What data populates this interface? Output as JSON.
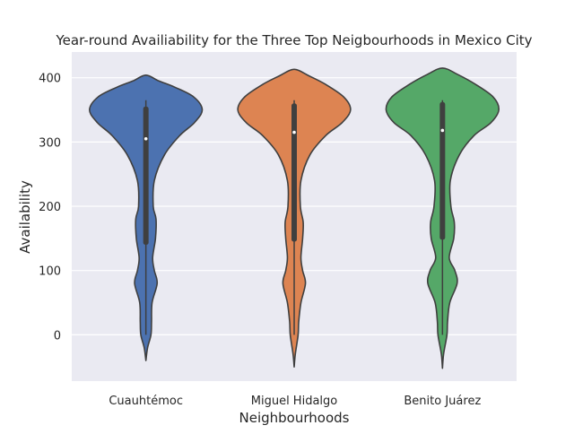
{
  "chart_data": {
    "type": "violin",
    "title": "Year-round Availiability for the Three Top Neigbourhoods in Mexico City",
    "xlabel": "Neighbourhoods",
    "ylabel": "Availability",
    "ylim": [
      -72,
      440
    ],
    "yticks": [
      0,
      100,
      200,
      300,
      400
    ],
    "grid": true,
    "categories": [
      "Cuauhtémoc",
      "Miguel Hidalgo",
      "Benito Juárez"
    ],
    "colors": [
      "#4c72b0",
      "#dd8452",
      "#55a868"
    ],
    "series": [
      {
        "category": "Cuauhtémoc",
        "median": 305,
        "q1": 140,
        "q3": 355,
        "whisker_low": 0,
        "whisker_high": 365,
        "density": [
          [
            -40,
            0.0
          ],
          [
            -20,
            0.03
          ],
          [
            0,
            0.09
          ],
          [
            20,
            0.1
          ],
          [
            50,
            0.11
          ],
          [
            80,
            0.2
          ],
          [
            100,
            0.15
          ],
          [
            120,
            0.12
          ],
          [
            150,
            0.17
          ],
          [
            180,
            0.18
          ],
          [
            200,
            0.13
          ],
          [
            240,
            0.15
          ],
          [
            280,
            0.33
          ],
          [
            310,
            0.6
          ],
          [
            330,
            0.86
          ],
          [
            350,
            1.0
          ],
          [
            370,
            0.85
          ],
          [
            385,
            0.52
          ],
          [
            395,
            0.23
          ],
          [
            404,
            0.0
          ]
        ]
      },
      {
        "category": "Miguel Hidalgo",
        "median": 315,
        "q1": 145,
        "q3": 360,
        "whisker_low": 0,
        "whisker_high": 365,
        "density": [
          [
            -50,
            0.0
          ],
          [
            -30,
            0.02
          ],
          [
            0,
            0.07
          ],
          [
            20,
            0.08
          ],
          [
            50,
            0.12
          ],
          [
            80,
            0.2
          ],
          [
            100,
            0.15
          ],
          [
            120,
            0.12
          ],
          [
            150,
            0.15
          ],
          [
            175,
            0.16
          ],
          [
            200,
            0.11
          ],
          [
            240,
            0.12
          ],
          [
            280,
            0.28
          ],
          [
            310,
            0.56
          ],
          [
            330,
            0.85
          ],
          [
            350,
            1.0
          ],
          [
            370,
            0.88
          ],
          [
            390,
            0.55
          ],
          [
            403,
            0.26
          ],
          [
            413,
            0.0
          ]
        ]
      },
      {
        "category": "Benito Juárez",
        "median": 318,
        "q1": 148,
        "q3": 362,
        "whisker_low": 0,
        "whisker_high": 365,
        "density": [
          [
            -52,
            0.0
          ],
          [
            -30,
            0.02
          ],
          [
            0,
            0.08
          ],
          [
            20,
            0.09
          ],
          [
            50,
            0.13
          ],
          [
            80,
            0.26
          ],
          [
            100,
            0.22
          ],
          [
            120,
            0.12
          ],
          [
            150,
            0.2
          ],
          [
            175,
            0.21
          ],
          [
            200,
            0.15
          ],
          [
            240,
            0.14
          ],
          [
            280,
            0.3
          ],
          [
            310,
            0.56
          ],
          [
            330,
            0.86
          ],
          [
            350,
            1.0
          ],
          [
            370,
            0.9
          ],
          [
            390,
            0.58
          ],
          [
            405,
            0.27
          ],
          [
            415,
            0.0
          ]
        ]
      }
    ]
  }
}
